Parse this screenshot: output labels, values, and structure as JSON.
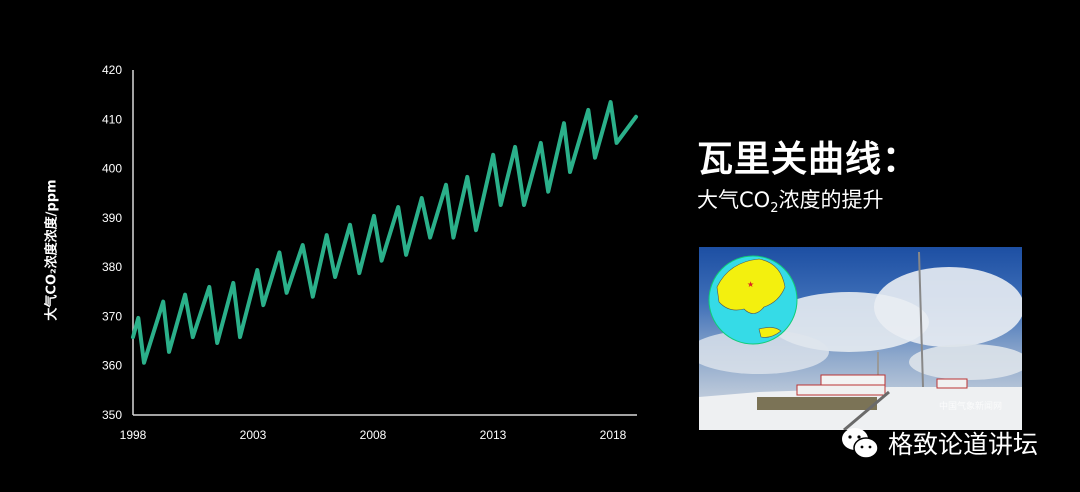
{
  "chart_data": {
    "type": "line",
    "title": "",
    "xlabel": "",
    "ylabel": "大气CO₂浓度浓度/ppm",
    "ylim": [
      350,
      420
    ],
    "xlim": [
      1998,
      2019
    ],
    "yticks": [
      "350",
      "360",
      "370",
      "380",
      "390",
      "400",
      "410",
      "420"
    ],
    "xticks": [
      "1998",
      "2003",
      "2008",
      "2013",
      "2018"
    ],
    "grid": false,
    "line_color": "#2bb08a",
    "series": [
      {
        "points": [
          [
            1998.0,
            365.8
          ],
          [
            1998.22,
            369.7
          ],
          [
            1998.46,
            360.6
          ],
          [
            1999.26,
            373.0
          ],
          [
            1999.5,
            362.8
          ],
          [
            2000.17,
            374.4
          ],
          [
            2000.49,
            365.8
          ],
          [
            2001.18,
            376.0
          ],
          [
            2001.51,
            364.6
          ],
          [
            2002.18,
            376.8
          ],
          [
            2002.46,
            365.8
          ],
          [
            2003.18,
            379.4
          ],
          [
            2003.43,
            372.3
          ],
          [
            2004.1,
            383.0
          ],
          [
            2004.4,
            374.8
          ],
          [
            2005.07,
            384.5
          ],
          [
            2005.49,
            374.0
          ],
          [
            2006.07,
            386.5
          ],
          [
            2006.42,
            378.0
          ],
          [
            2007.04,
            388.6
          ],
          [
            2007.43,
            378.8
          ],
          [
            2008.04,
            390.4
          ],
          [
            2008.36,
            381.3
          ],
          [
            2009.05,
            392.2
          ],
          [
            2009.38,
            382.5
          ],
          [
            2010.03,
            394.0
          ],
          [
            2010.38,
            386.0
          ],
          [
            2011.04,
            396.7
          ],
          [
            2011.35,
            386.0
          ],
          [
            2011.93,
            398.3
          ],
          [
            2012.29,
            387.5
          ],
          [
            2013.01,
            402.8
          ],
          [
            2013.32,
            392.6
          ],
          [
            2013.92,
            404.4
          ],
          [
            2014.29,
            392.6
          ],
          [
            2014.99,
            405.2
          ],
          [
            2015.3,
            395.3
          ],
          [
            2015.96,
            409.2
          ],
          [
            2016.21,
            399.3
          ],
          [
            2016.97,
            411.9
          ],
          [
            2017.25,
            402.2
          ],
          [
            2017.9,
            413.5
          ],
          [
            2018.15,
            405.2
          ],
          [
            2018.96,
            410.5
          ]
        ]
      }
    ]
  },
  "right": {
    "title": "瓦里关曲线：",
    "subtitle_pre": "大气CO",
    "subtitle_sub": "2",
    "subtitle_post": "浓度的提升",
    "photo_watermark": "中国气象新闻网",
    "wechat_label": "格致论道讲坛"
  }
}
